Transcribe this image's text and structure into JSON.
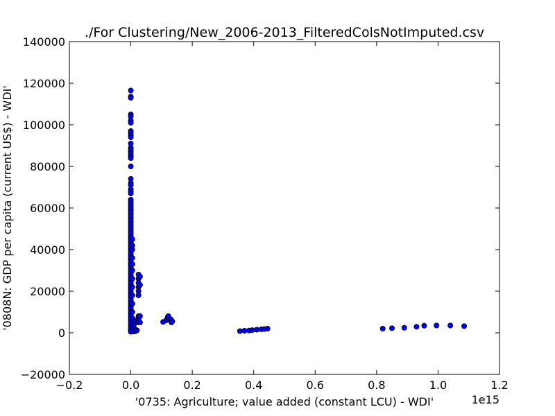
{
  "chart_data": {
    "type": "scatter",
    "title": "./For Clustering/New_2006-2013_FilteredColsNotImputed.csv",
    "xlabel": "'0735: Agriculture; value added  (constant LCU) - WDI'",
    "ylabel": "'0808N: GDP per capita  (current US$) - WDI'",
    "x_offset_text": "1e15",
    "x_scale": 1000000000000000.0,
    "xlim": [
      -0.2,
      1.2
    ],
    "ylim": [
      -20000,
      140000
    ],
    "xticks": [
      -0.2,
      0.0,
      0.2,
      0.4,
      0.6,
      0.8,
      1.0,
      1.2
    ],
    "xtick_labels": [
      "−0.2",
      "0.0",
      "0.2",
      "0.4",
      "0.6",
      "0.8",
      "1.0",
      "1.2"
    ],
    "yticks": [
      -20000,
      0,
      20000,
      40000,
      60000,
      80000,
      100000,
      120000,
      140000
    ],
    "ytick_labels": [
      "−20000",
      "0",
      "20000",
      "40000",
      "60000",
      "80000",
      "100000",
      "120000",
      "140000"
    ],
    "grid": false,
    "marker_color": "#0000ff",
    "series": [
      {
        "points": [
          [
            0.0,
            116500
          ],
          [
            0.0,
            113500
          ],
          [
            0.0,
            113000
          ],
          [
            0.0,
            105000
          ],
          [
            0.0,
            104000
          ],
          [
            0.0,
            102000
          ],
          [
            0.0,
            101000
          ],
          [
            0.0,
            97000
          ],
          [
            0.0,
            96000
          ],
          [
            0.0,
            95000
          ],
          [
            0.0,
            94000
          ],
          [
            0.0,
            91000
          ],
          [
            0.0,
            89000
          ],
          [
            0.0,
            88000
          ],
          [
            0.0,
            87000
          ],
          [
            0.0,
            86000
          ],
          [
            0.0,
            85000
          ],
          [
            0.0,
            84000
          ],
          [
            0.0,
            80000
          ],
          [
            0.0,
            74000
          ],
          [
            0.0,
            72000
          ],
          [
            0.0,
            71000
          ],
          [
            0.0,
            69000
          ],
          [
            0.0,
            68000
          ],
          [
            0.0,
            67000
          ],
          [
            0.0,
            64000
          ],
          [
            0.0,
            63000
          ],
          [
            0.0,
            62000
          ],
          [
            0.0,
            61000
          ],
          [
            0.0,
            60000
          ],
          [
            0.0,
            59000
          ],
          [
            0.0,
            58000
          ],
          [
            0.0,
            57000
          ],
          [
            0.0,
            56000
          ],
          [
            0.0,
            55000
          ],
          [
            0.0,
            54000
          ],
          [
            0.0,
            53000
          ],
          [
            0.0,
            52000
          ],
          [
            0.0,
            51000
          ],
          [
            0.0,
            50000
          ],
          [
            0.0,
            49000
          ],
          [
            0.0,
            48000
          ],
          [
            0.0,
            47000
          ],
          [
            0.0,
            46000
          ],
          [
            0.0,
            45000
          ],
          [
            0.0,
            44000
          ],
          [
            0.0,
            43000
          ],
          [
            0.0,
            42000
          ],
          [
            0.0,
            41000
          ],
          [
            0.0,
            40000
          ],
          [
            0.0,
            39000
          ],
          [
            0.0,
            38000
          ],
          [
            0.0,
            37000
          ],
          [
            0.0,
            36000
          ],
          [
            0.0,
            35000
          ],
          [
            0.0,
            34000
          ],
          [
            0.0,
            33000
          ],
          [
            0.0,
            32000
          ],
          [
            0.0,
            31000
          ],
          [
            0.0,
            30000
          ],
          [
            0.0,
            29000
          ],
          [
            0.0,
            28000
          ],
          [
            0.0,
            27000
          ],
          [
            0.0,
            26000
          ],
          [
            0.0,
            25000
          ],
          [
            0.0,
            24000
          ],
          [
            0.0,
            23000
          ],
          [
            0.0,
            22000
          ],
          [
            0.0,
            21000
          ],
          [
            0.0,
            20000
          ],
          [
            0.0,
            19000
          ],
          [
            0.0,
            18000
          ],
          [
            0.0,
            17000
          ],
          [
            0.0,
            16000
          ],
          [
            0.0,
            15000
          ],
          [
            0.0,
            14000
          ],
          [
            0.0,
            13000
          ],
          [
            0.0,
            12000
          ],
          [
            0.0,
            11000
          ],
          [
            0.0,
            10000
          ],
          [
            0.0,
            9000
          ],
          [
            0.0,
            8000
          ],
          [
            0.0,
            7000
          ],
          [
            0.0,
            6000
          ],
          [
            0.0,
            5000
          ],
          [
            0.0,
            4000
          ],
          [
            0.0,
            3000
          ],
          [
            0.0,
            2000
          ],
          [
            0.0,
            1000
          ],
          [
            0.0,
            500
          ],
          [
            0.005,
            45000
          ],
          [
            0.005,
            42000
          ],
          [
            0.005,
            40000
          ],
          [
            0.005,
            36000
          ],
          [
            0.005,
            33000
          ],
          [
            0.005,
            30000
          ],
          [
            0.005,
            26000
          ],
          [
            0.005,
            22000
          ],
          [
            0.005,
            18000
          ],
          [
            0.005,
            14000
          ],
          [
            0.005,
            10000
          ],
          [
            0.005,
            7000
          ],
          [
            0.005,
            5000
          ],
          [
            0.005,
            3000
          ],
          [
            0.005,
            1500
          ],
          [
            0.005,
            800
          ],
          [
            0.01,
            6000
          ],
          [
            0.01,
            4000
          ],
          [
            0.01,
            2500
          ],
          [
            0.01,
            1200
          ],
          [
            0.01,
            600
          ],
          [
            0.015,
            1500
          ],
          [
            0.015,
            800
          ],
          [
            0.02,
            1200
          ],
          [
            0.025,
            28000
          ],
          [
            0.025,
            26000
          ],
          [
            0.025,
            24000
          ],
          [
            0.025,
            22000
          ],
          [
            0.025,
            20000
          ],
          [
            0.025,
            18000
          ],
          [
            0.025,
            8000
          ],
          [
            0.025,
            7000
          ],
          [
            0.025,
            6000
          ],
          [
            0.025,
            5000
          ],
          [
            0.03,
            27000
          ],
          [
            0.03,
            23000
          ],
          [
            0.03,
            8000
          ],
          [
            0.03,
            5000
          ],
          [
            0.105,
            5200
          ],
          [
            0.115,
            6000
          ],
          [
            0.12,
            7500
          ],
          [
            0.122,
            8000
          ],
          [
            0.125,
            7000
          ],
          [
            0.13,
            6500
          ],
          [
            0.132,
            5000
          ],
          [
            0.135,
            5500
          ],
          [
            0.355,
            800
          ],
          [
            0.37,
            1000
          ],
          [
            0.385,
            1100
          ],
          [
            0.395,
            1300
          ],
          [
            0.41,
            1500
          ],
          [
            0.425,
            1700
          ],
          [
            0.435,
            1800
          ],
          [
            0.445,
            2000
          ],
          [
            0.82,
            2000
          ],
          [
            0.85,
            2200
          ],
          [
            0.89,
            2400
          ],
          [
            0.93,
            2900
          ],
          [
            0.955,
            3400
          ],
          [
            0.995,
            3500
          ],
          [
            1.04,
            3500
          ],
          [
            1.085,
            3200
          ]
        ]
      }
    ]
  }
}
